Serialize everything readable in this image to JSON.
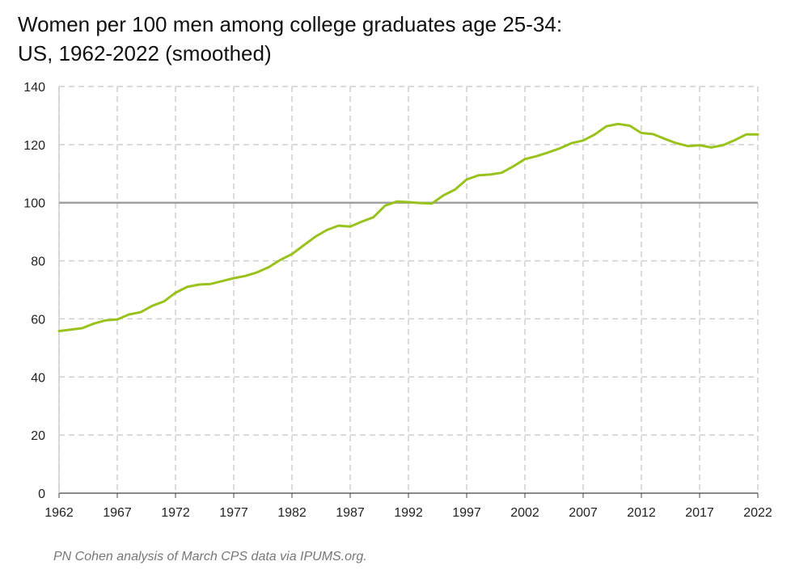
{
  "chart_data": {
    "type": "line",
    "title": "Women per 100 men among college graduates age 25-34:",
    "subtitle": "US, 1962-2022 (smoothed)",
    "xlabel": "",
    "ylabel": "",
    "xlim": [
      1962,
      2022
    ],
    "ylim": [
      0,
      140
    ],
    "x_ticks": [
      1962,
      1967,
      1972,
      1977,
      1982,
      1987,
      1992,
      1997,
      2002,
      2007,
      2012,
      2017,
      2022
    ],
    "y_ticks": [
      0,
      20,
      40,
      60,
      80,
      100,
      120,
      140
    ],
    "grid": true,
    "reference_line": 100,
    "source": "PN Cohen analysis of March CPS data via IPUMS.org.",
    "colors": {
      "series": "#99c31c",
      "reference": "#a0a0a0",
      "grid": "#cfcfcf"
    },
    "series": [
      {
        "x": [
          1962,
          1963,
          1964,
          1965,
          1966,
          1967,
          1968,
          1969,
          1970,
          1971,
          1972,
          1973,
          1974,
          1975,
          1976,
          1977,
          1978,
          1979,
          1980,
          1981,
          1982,
          1983,
          1984,
          1985,
          1986,
          1987,
          1988,
          1989,
          1990,
          1991,
          1992,
          1993,
          1994,
          1995,
          1996,
          1997,
          1998,
          1999,
          2000,
          2001,
          2002,
          2003,
          2004,
          2005,
          2006,
          2007,
          2008,
          2009,
          2010,
          2011,
          2012,
          2013,
          2014,
          2015,
          2016,
          2017,
          2018,
          2019,
          2020,
          2021,
          2022
        ],
        "values": [
          55.8,
          56.3,
          56.8,
          58.4,
          59.5,
          59.8,
          61.5,
          62.3,
          64.5,
          66.0,
          69.0,
          71.0,
          71.8,
          72.0,
          73.0,
          74.0,
          74.8,
          76.0,
          77.8,
          80.3,
          82.3,
          85.3,
          88.3,
          90.6,
          92.1,
          91.8,
          93.5,
          95.0,
          99.0,
          100.4,
          100.2,
          99.9,
          99.7,
          102.5,
          104.5,
          108.0,
          109.4,
          109.7,
          110.3,
          112.5,
          115.0,
          116.0,
          117.3,
          118.7,
          120.5,
          121.4,
          123.5,
          126.3,
          127.1,
          126.5,
          124.0,
          123.6,
          122.0,
          120.5,
          119.5,
          119.8,
          119.0,
          119.8,
          121.5,
          123.5,
          123.5
        ]
      }
    ]
  }
}
